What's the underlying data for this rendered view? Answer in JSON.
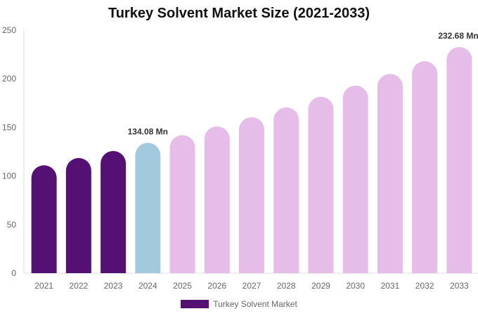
{
  "chart_data": {
    "type": "bar",
    "title": "Turkey Solvent Market Size (2021-2033)",
    "categories": [
      "2021",
      "2022",
      "2023",
      "2024",
      "2025",
      "2026",
      "2027",
      "2028",
      "2029",
      "2030",
      "2031",
      "2032",
      "2033"
    ],
    "series": [
      {
        "name": "Turkey Solvent Market",
        "values": [
          111,
          118.5,
          125.7,
          134.08,
          142,
          151,
          160.5,
          170.5,
          181.5,
          193,
          205,
          218,
          232.68
        ]
      }
    ],
    "ylim": [
      0,
      250
    ],
    "yticks": [
      0,
      50,
      100,
      150,
      200,
      250
    ],
    "data_labels": [
      {
        "category": "2024",
        "text": "134.08 Mn"
      },
      {
        "category": "2033",
        "text": "232.68 Mn"
      }
    ],
    "grid": false,
    "legend_position": "bottom",
    "colors": {
      "historical": "#541173",
      "current": "#a3c9de",
      "forecast": "#e6bce8"
    },
    "xlabel": "",
    "ylabel": ""
  }
}
